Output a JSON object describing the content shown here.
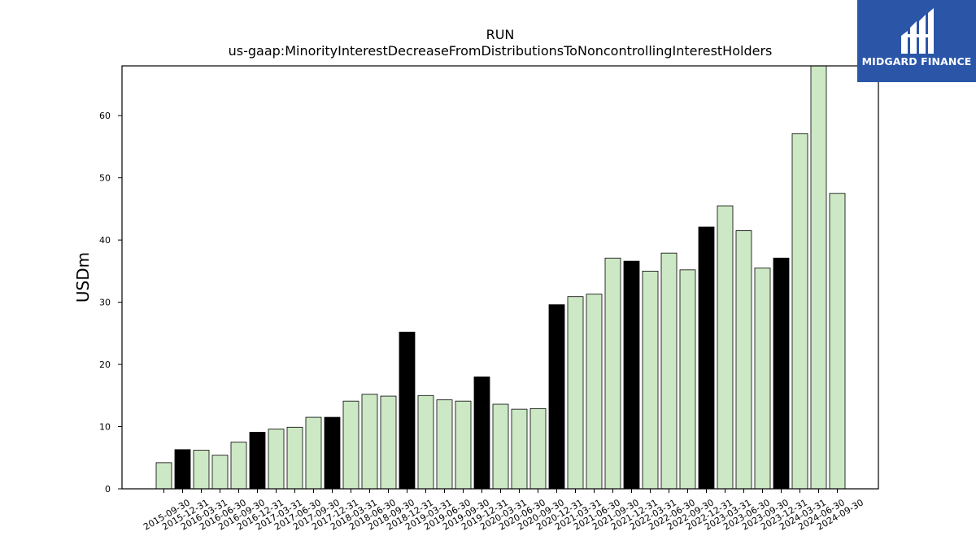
{
  "brand": {
    "name": "MIDGARD FINANCE",
    "bg_color": "#2b56a8",
    "icon": "midgard-logo-icon"
  },
  "chart_data": {
    "type": "bar",
    "title": "RUN",
    "subtitle": "us-gaap:MinorityInterestDecreaseFromDistributionsToNoncontrollingInterestHolders",
    "xlabel": "",
    "ylabel": "USDm",
    "ylim": [
      0,
      68
    ],
    "yticks": [
      0,
      10,
      20,
      30,
      40,
      50,
      60
    ],
    "grid": false,
    "categories": [
      "2015-09-30",
      "2015-12-31",
      "2016-03-31",
      "2016-06-30",
      "2016-09-30",
      "2016-12-31",
      "2017-03-31",
      "2017-06-30",
      "2017-09-30",
      "2017-12-31",
      "2018-03-31",
      "2018-06-30",
      "2018-09-30",
      "2018-12-31",
      "2019-03-31",
      "2019-06-30",
      "2019-09-30",
      "2019-12-31",
      "2020-03-31",
      "2020-06-30",
      "2020-09-30",
      "2020-12-31",
      "2021-03-31",
      "2021-06-30",
      "2021-09-30",
      "2021-12-31",
      "2022-03-31",
      "2022-06-30",
      "2022-09-30",
      "2022-12-31",
      "2023-03-31",
      "2023-06-30",
      "2023-09-30",
      "2023-12-31",
      "2024-03-31",
      "2024-06-30",
      "2024-09-30"
    ],
    "values": [
      4.2,
      6.3,
      6.2,
      5.4,
      7.5,
      9.1,
      9.6,
      9.9,
      11.5,
      11.5,
      14.1,
      15.2,
      14.9,
      25.2,
      15.0,
      14.3,
      14.1,
      18.0,
      13.6,
      12.8,
      12.9,
      29.6,
      30.9,
      31.3,
      37.1,
      36.6,
      35.0,
      37.9,
      35.2,
      42.1,
      45.5,
      41.5,
      35.5,
      37.1,
      57.1,
      68.0,
      47.5
    ],
    "highlight_quarter": "12-31",
    "colors": {
      "normal": "#cce8c4",
      "highlight": "#000000",
      "edge": "#000000"
    }
  }
}
